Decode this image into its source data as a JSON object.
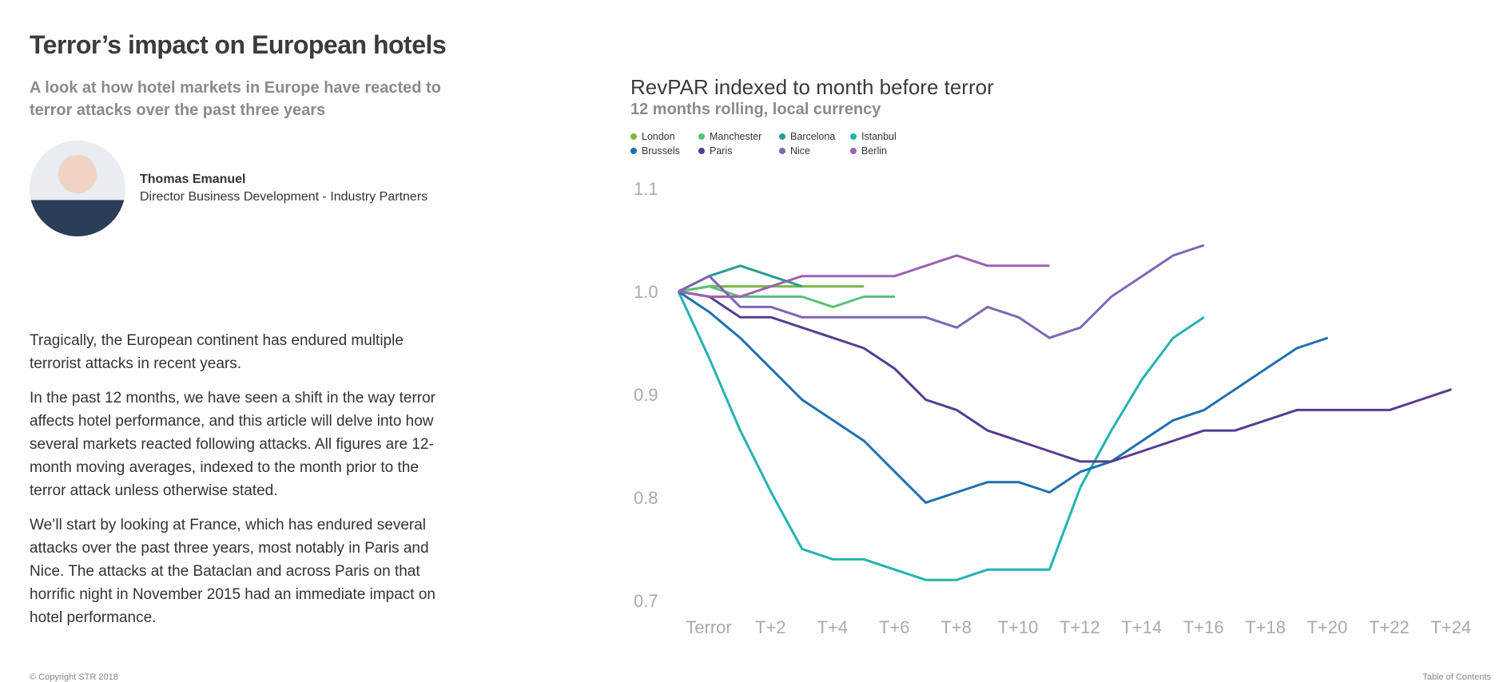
{
  "article": {
    "title": "Terror’s impact on European hotels",
    "subtitle": "A look at how hotel markets in Europe have reacted to terror attacks over the past three years",
    "author_name": "Thomas Emanuel",
    "author_role": "Director Business Development - Industry Partners",
    "paragraphs": [
      "Tragically, the European continent has endured multiple terrorist attacks in recent years.",
      "In the past 12 months, we have seen a shift in the way terror affects hotel performance, and this article will delve into how several markets reacted following attacks. All figures are 12-month moving averages, indexed to the month prior to the terror attack unless otherwise stated.",
      "We’ll start by looking at France, which has endured several attacks over the past three years, most notably in Paris and Nice. The attacks at the Bataclan and across Paris on that horrific night in November 2015 had an immediate impact on hotel performance."
    ]
  },
  "footer": {
    "copyright": "© Copyright STR 2018",
    "toc": "Table of Contents"
  },
  "chart_data": {
    "type": "line",
    "title": "RevPAR indexed to month before terror",
    "subtitle": "12 months rolling, local currency",
    "xlabel": "",
    "ylabel": "",
    "ylim": [
      0.7,
      1.1
    ],
    "yticks": [
      "0.7",
      "0.8",
      "0.9",
      "1.0",
      "1.1"
    ],
    "xticks": [
      "Terror",
      "T+2",
      "T+4",
      "T+6",
      "T+8",
      "T+10",
      "T+12",
      "T+14",
      "T+16",
      "T+18",
      "T+20",
      "T+22",
      "T+24"
    ],
    "grid": false,
    "legend_position": "top-left",
    "series": [
      {
        "name": "London",
        "color": "#7ab648",
        "values": [
          1.0,
          1.005,
          1.005,
          1.005,
          1.005,
          1.005,
          1.005
        ]
      },
      {
        "name": "Manchester",
        "color": "#5cbf7a",
        "values": [
          1.0,
          1.005,
          0.995,
          0.995,
          0.995,
          0.985,
          0.995,
          0.995
        ]
      },
      {
        "name": "Barcelona",
        "color": "#2a9d8f",
        "values": [
          1.0,
          1.015,
          1.025,
          1.015,
          1.005
        ]
      },
      {
        "name": "Istanbul",
        "color": "#22b3b0",
        "values": [
          1.0,
          0.935,
          0.865,
          0.805,
          0.75,
          0.74,
          0.74,
          0.73,
          0.72,
          0.72,
          0.73,
          0.73,
          0.73,
          0.81,
          0.865,
          0.915,
          0.955,
          0.975
        ]
      },
      {
        "name": "Brussels",
        "color": "#1f6fb0",
        "values": [
          1.0,
          0.98,
          0.955,
          0.925,
          0.895,
          0.875,
          0.855,
          0.825,
          0.795,
          0.805,
          0.815,
          0.815,
          0.805,
          0.825,
          0.835,
          0.855,
          0.875,
          0.885,
          0.905,
          0.925,
          0.945,
          0.955
        ]
      },
      {
        "name": "Paris",
        "color": "#553c8f",
        "values": [
          1.0,
          0.995,
          0.975,
          0.975,
          0.965,
          0.955,
          0.945,
          0.925,
          0.895,
          0.885,
          0.865,
          0.855,
          0.845,
          0.835,
          0.835,
          0.845,
          0.855,
          0.865,
          0.865,
          0.875,
          0.885,
          0.885,
          0.885,
          0.885,
          0.895,
          0.905
        ]
      },
      {
        "name": "Nice",
        "color": "#7e66b5",
        "values": [
          1.0,
          1.015,
          0.985,
          0.985,
          0.975,
          0.975,
          0.975,
          0.975,
          0.975,
          0.965,
          0.985,
          0.975,
          0.955,
          0.965
        ]
      },
      {
        "name": "Berlin",
        "color": "#9b61b0",
        "values": [
          1.0,
          0.995,
          0.995,
          1.005,
          1.015,
          1.015,
          1.015,
          1.015,
          1.025,
          1.035,
          1.025,
          1.025,
          1.025
        ]
      }
    ],
    "extra_series_note": "",
    "nice_tail": [
      0.995,
      1.015,
      1.035,
      1.045
    ]
  }
}
